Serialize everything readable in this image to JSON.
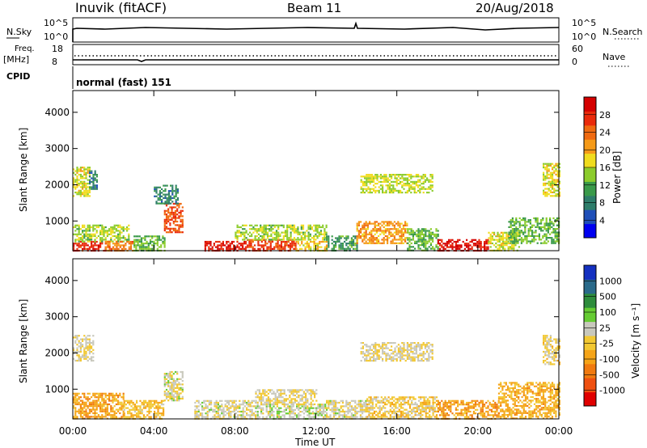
{
  "header": {
    "station": "Inuvik (fitACF)",
    "beam": "Beam 11",
    "date": "20/Aug/2018"
  },
  "top_panels": {
    "nsky_label": "N.Sky",
    "nsky_ticks": [
      "10^5",
      "10^0"
    ],
    "nsearch_label": "N.Search",
    "nsearch_ticks": [
      "10^5",
      "10^0"
    ],
    "freq_label": "Freq.",
    "freq_unit": "[MHz]",
    "freq_ticks": [
      "18",
      "8"
    ],
    "nave_label": "Nave",
    "nave_ticks": [
      "60",
      "0"
    ],
    "cpid_label": "CPID",
    "cpid_value": "normal (fast) 151"
  },
  "chart_data": [
    {
      "type": "heatmap",
      "name": "power",
      "ylabel": "Slant Range [km]",
      "xlabel": "Time UT",
      "x_ticks": [
        "00:00",
        "04:00",
        "08:00",
        "12:00",
        "16:00",
        "20:00",
        "00:00"
      ],
      "xlim_hours": [
        0,
        24
      ],
      "ylim_km": [
        180,
        4600
      ],
      "y_ticks": [
        "4000",
        "3000",
        "2000",
        "1000"
      ],
      "colorbar": {
        "label": "Power [dB]",
        "ticks": [
          "28",
          "24",
          "20",
          "16",
          "12",
          "8",
          "4"
        ],
        "range": [
          0,
          30
        ],
        "colors": [
          "#0000f0",
          "#1f4fb8",
          "#2e7d6a",
          "#3a9a4a",
          "#8ccc2c",
          "#f0dc1e",
          "#f59a18",
          "#f06a10",
          "#ea2a0a",
          "#d40000"
        ]
      },
      "regions": [
        {
          "t0": 0.0,
          "t1": 1.6,
          "r0": 190,
          "r1": 450,
          "value": 26
        },
        {
          "t0": 0.0,
          "t1": 2.8,
          "r0": 450,
          "r1": 900,
          "value": 14
        },
        {
          "t0": 0.0,
          "t1": 0.8,
          "r0": 1700,
          "r1": 2500,
          "value": 16
        },
        {
          "t0": 0.8,
          "t1": 1.2,
          "r0": 1900,
          "r1": 2400,
          "value": 8
        },
        {
          "t0": 1.6,
          "t1": 3.0,
          "r0": 190,
          "r1": 450,
          "value": 22
        },
        {
          "t0": 3.0,
          "t1": 4.5,
          "r0": 190,
          "r1": 600,
          "value": 12
        },
        {
          "t0": 4.5,
          "t1": 5.4,
          "r0": 700,
          "r1": 1500,
          "value": 24
        },
        {
          "t0": 4.0,
          "t1": 5.2,
          "r0": 1500,
          "r1": 2000,
          "value": 8
        },
        {
          "t0": 6.5,
          "t1": 8.5,
          "r0": 190,
          "r1": 450,
          "value": 27
        },
        {
          "t0": 8.5,
          "t1": 11.0,
          "r0": 190,
          "r1": 500,
          "value": 25
        },
        {
          "t0": 8.0,
          "t1": 12.5,
          "r0": 500,
          "r1": 900,
          "value": 14
        },
        {
          "t0": 11.0,
          "t1": 12.5,
          "r0": 190,
          "r1": 450,
          "value": 17
        },
        {
          "t0": 12.5,
          "t1": 14.0,
          "r0": 190,
          "r1": 600,
          "value": 10
        },
        {
          "t0": 14.2,
          "t1": 17.8,
          "r0": 1800,
          "r1": 2300,
          "value": 15
        },
        {
          "t0": 14.0,
          "t1": 16.5,
          "r0": 400,
          "r1": 1000,
          "value": 20
        },
        {
          "t0": 16.5,
          "t1": 18.0,
          "r0": 190,
          "r1": 800,
          "value": 12
        },
        {
          "t0": 18.0,
          "t1": 20.5,
          "r0": 190,
          "r1": 500,
          "value": 28
        },
        {
          "t0": 20.5,
          "t1": 22.0,
          "r0": 190,
          "r1": 700,
          "value": 16
        },
        {
          "t0": 21.5,
          "t1": 24.0,
          "r0": 400,
          "r1": 1100,
          "value": 12
        },
        {
          "t0": 23.2,
          "t1": 24.0,
          "r0": 1700,
          "r1": 2600,
          "value": 16
        }
      ]
    },
    {
      "type": "heatmap",
      "name": "velocity",
      "ylabel": "Slant Range [km]",
      "xlabel": "Time UT",
      "x_ticks": [
        "00:00",
        "04:00",
        "08:00",
        "12:00",
        "16:00",
        "20:00",
        "00:00"
      ],
      "xlim_hours": [
        0,
        24
      ],
      "ylim_km": [
        180,
        4600
      ],
      "y_ticks": [
        "4000",
        "3000",
        "2000",
        "1000"
      ],
      "colorbar": {
        "label": "Velocity [m s⁻¹]",
        "ticks": [
          "1000",
          "500",
          "100",
          "25",
          "-25",
          "-100",
          "-500",
          "-1000"
        ],
        "range": [
          -1200,
          1200
        ],
        "colors": [
          "#e00000",
          "#ef5010",
          "#f07a10",
          "#f5a418",
          "#f2c832",
          "#c8c8bc",
          "#66cc33",
          "#2e8c3c",
          "#2a6a8a",
          "#1430c0"
        ]
      },
      "regions": [
        {
          "t0": 0.0,
          "t1": 2.5,
          "r0": 190,
          "r1": 900,
          "value": -350
        },
        {
          "t0": 0.0,
          "t1": 1.0,
          "r0": 1800,
          "r1": 2500,
          "value": 5
        },
        {
          "t0": 2.5,
          "t1": 4.5,
          "r0": 190,
          "r1": 700,
          "value": -200
        },
        {
          "t0": 4.5,
          "t1": 5.4,
          "r0": 700,
          "r1": 1500,
          "value": 80
        },
        {
          "t0": 6.0,
          "t1": 9.0,
          "r0": 190,
          "r1": 700,
          "value": 60
        },
        {
          "t0": 9.0,
          "t1": 12.5,
          "r0": 190,
          "r1": 600,
          "value": 150
        },
        {
          "t0": 9.0,
          "t1": 12.0,
          "r0": 600,
          "r1": 1000,
          "value": 0
        },
        {
          "t0": 12.5,
          "t1": 14.5,
          "r0": 190,
          "r1": 700,
          "value": 40
        },
        {
          "t0": 14.2,
          "t1": 17.8,
          "r0": 1800,
          "r1": 2300,
          "value": 0
        },
        {
          "t0": 14.5,
          "t1": 18.0,
          "r0": 190,
          "r1": 800,
          "value": -120
        },
        {
          "t0": 18.0,
          "t1": 21.0,
          "r0": 190,
          "r1": 700,
          "value": -400
        },
        {
          "t0": 21.0,
          "t1": 24.0,
          "r0": 190,
          "r1": 1200,
          "value": -300
        },
        {
          "t0": 23.2,
          "t1": 24.0,
          "r0": 1700,
          "r1": 2500,
          "value": -60
        }
      ]
    }
  ]
}
